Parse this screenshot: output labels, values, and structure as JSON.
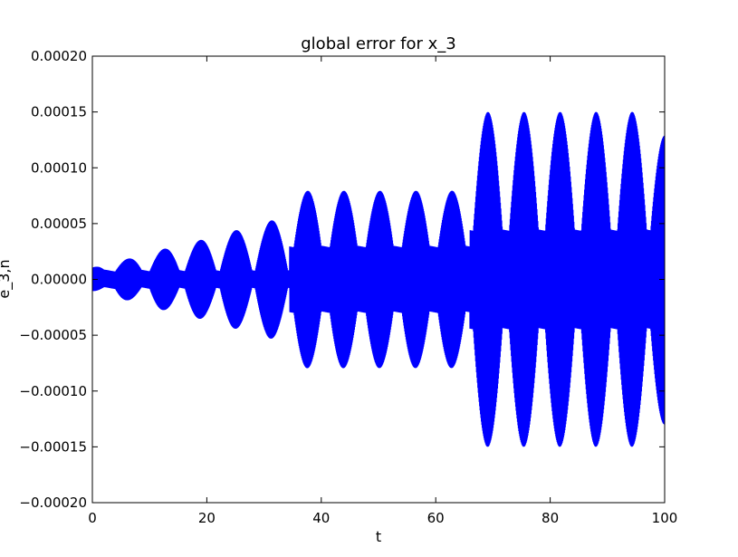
{
  "chart_data": {
    "type": "line",
    "title": "global error for x_3",
    "xlabel": "t",
    "ylabel": "e_3,n",
    "xlim": [
      0,
      100
    ],
    "ylim": [
      -0.0002,
      0.0002
    ],
    "x_ticks": [
      0,
      20,
      40,
      60,
      80,
      100
    ],
    "x_tick_labels": [
      "0",
      "20",
      "40",
      "60",
      "80",
      "100"
    ],
    "y_ticks": [
      -0.0002,
      -0.00015,
      -0.0001,
      -5e-05,
      0.0,
      5e-05,
      0.0001,
      0.00015,
      0.0002
    ],
    "y_tick_labels": [
      "−0.00020",
      "−0.00015",
      "−0.00010",
      "−0.00005",
      "0.00000",
      "0.00005",
      "0.00010",
      "0.00015",
      "0.00020"
    ],
    "grid": false,
    "legend": "none",
    "series": [
      {
        "color": "#0000ff",
        "description": "rapidly oscillating error; envelope of beats with growing amplitude, jumps near t=32 and t=65",
        "envelope_peaks": [
          {
            "t": 0.5,
            "amp": 1.1e-05
          },
          {
            "t": 6.3,
            "amp": 1.9e-05
          },
          {
            "t": 12.6,
            "amp": 2.8e-05
          },
          {
            "t": 18.9,
            "amp": 3.6e-05
          },
          {
            "t": 25.1,
            "amp": 4.5e-05
          },
          {
            "t": 31.3,
            "amp": 5.4e-05
          },
          {
            "t": 37.6,
            "amp": 8.1e-05
          },
          {
            "t": 43.9,
            "amp": 8.1e-05
          },
          {
            "t": 50.2,
            "amp": 8.1e-05
          },
          {
            "t": 56.5,
            "amp": 8.1e-05
          },
          {
            "t": 62.8,
            "amp": 8.1e-05
          },
          {
            "t": 69.1,
            "amp": 0.000153
          },
          {
            "t": 75.4,
            "amp": 0.000153
          },
          {
            "t": 81.7,
            "amp": 0.000153
          },
          {
            "t": 88.0,
            "amp": 0.000153
          },
          {
            "t": 94.3,
            "amp": 0.000153
          },
          {
            "t": 100.0,
            "amp": 0.000132
          }
        ]
      }
    ]
  }
}
